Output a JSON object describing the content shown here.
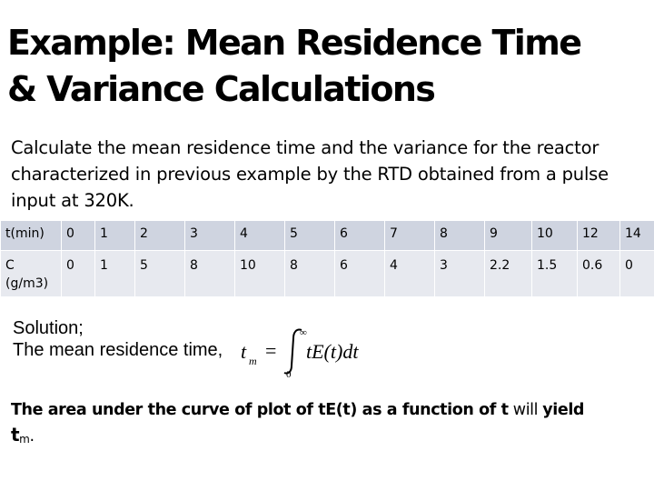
{
  "title": {
    "line1": "Example: Mean Residence Time",
    "line2": "& Variance Calculations"
  },
  "intro": "Calculate the mean residence time and the variance for the reactor characterized in previous example by the RTD obtained from a pulse input at 320K.",
  "table": {
    "t_label": "t(min)",
    "t_values": [
      "0",
      "1",
      "2",
      "3",
      "4",
      "5",
      "6",
      "7",
      "8",
      "9",
      "10",
      "12",
      "14"
    ],
    "c_label": "C (g/m3)",
    "c_values": [
      "0",
      "1",
      "5",
      "8",
      "10",
      "8",
      "6",
      "4",
      "3",
      "2.2",
      "1.5",
      "0.6",
      "0"
    ]
  },
  "solution": {
    "line1": "Solution;",
    "line2": "The mean residence time,"
  },
  "formula": {
    "lhs_var": "t",
    "lhs_sub": "m",
    "equals": "=",
    "upper_limit": "∞",
    "lower_limit": "0",
    "integrand": "tE(t)dt"
  },
  "conclusion": {
    "part1": "The area under the curve of plot of t",
    "part2": "E(t) as a function of t",
    "part3": " will ",
    "part4": "yield",
    "tm_var": "t",
    "tm_sub": "m",
    "period": "."
  }
}
